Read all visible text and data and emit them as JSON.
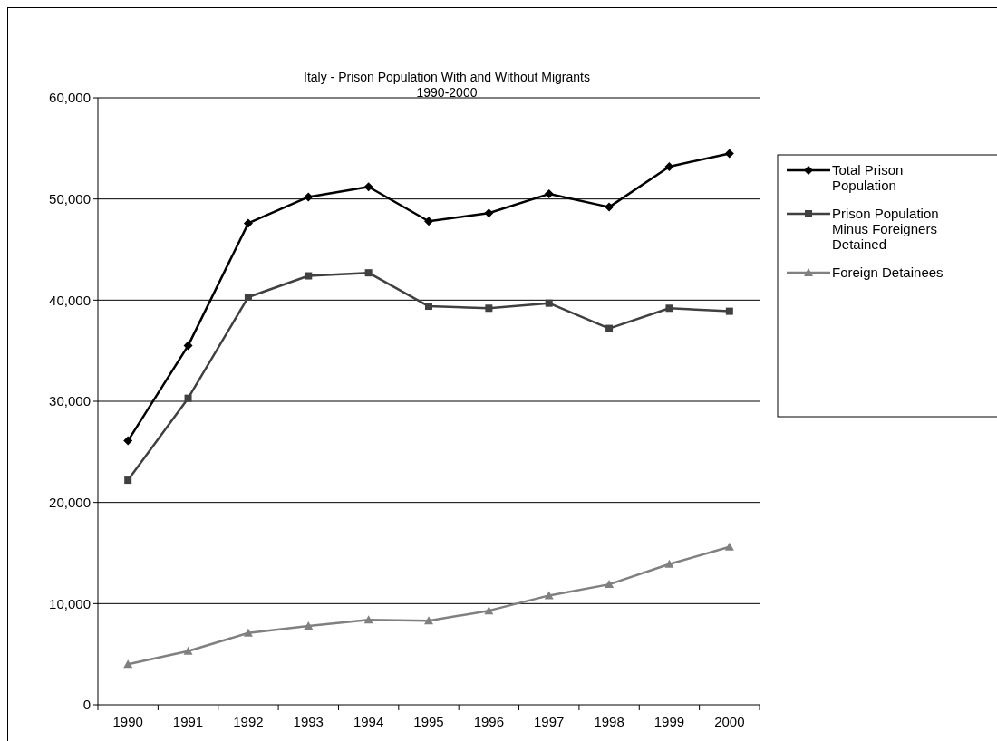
{
  "chart_data": {
    "type": "line",
    "title": "Italy - Prison Population With and Without Migrants",
    "subtitle": "1990-2000",
    "categories": [
      "1990",
      "1991",
      "1992",
      "1993",
      "1994",
      "1995",
      "1996",
      "1997",
      "1998",
      "1999",
      "2000"
    ],
    "ylim": [
      0,
      60000
    ],
    "yticks": [
      {
        "value": 0,
        "label": "0"
      },
      {
        "value": 10000,
        "label": "10,000"
      },
      {
        "value": 20000,
        "label": "20,000"
      },
      {
        "value": 30000,
        "label": "30,000"
      },
      {
        "value": 40000,
        "label": "40,000"
      },
      {
        "value": 50000,
        "label": "50,000"
      },
      {
        "value": 60000,
        "label": "60,000"
      }
    ],
    "grid": "y",
    "legend": "right",
    "line_style": "solid",
    "series": [
      {
        "name": "Total Prison Population",
        "color": "#000000",
        "marker": "diamond",
        "values": [
          26100,
          35500,
          47600,
          50200,
          51200,
          47800,
          48600,
          50500,
          49200,
          53200,
          54500
        ]
      },
      {
        "name": "Prison Population Minus Foreigners Detained",
        "color": "#404040",
        "marker": "square",
        "values": [
          22200,
          30300,
          40300,
          42400,
          42700,
          39400,
          39200,
          39700,
          37200,
          39200,
          38900
        ]
      },
      {
        "name": "Foreign Detainees",
        "color": "#808080",
        "marker": "triangle",
        "values": [
          4000,
          5300,
          7100,
          7800,
          8400,
          8300,
          9300,
          10800,
          11900,
          13900,
          15600
        ]
      }
    ]
  }
}
